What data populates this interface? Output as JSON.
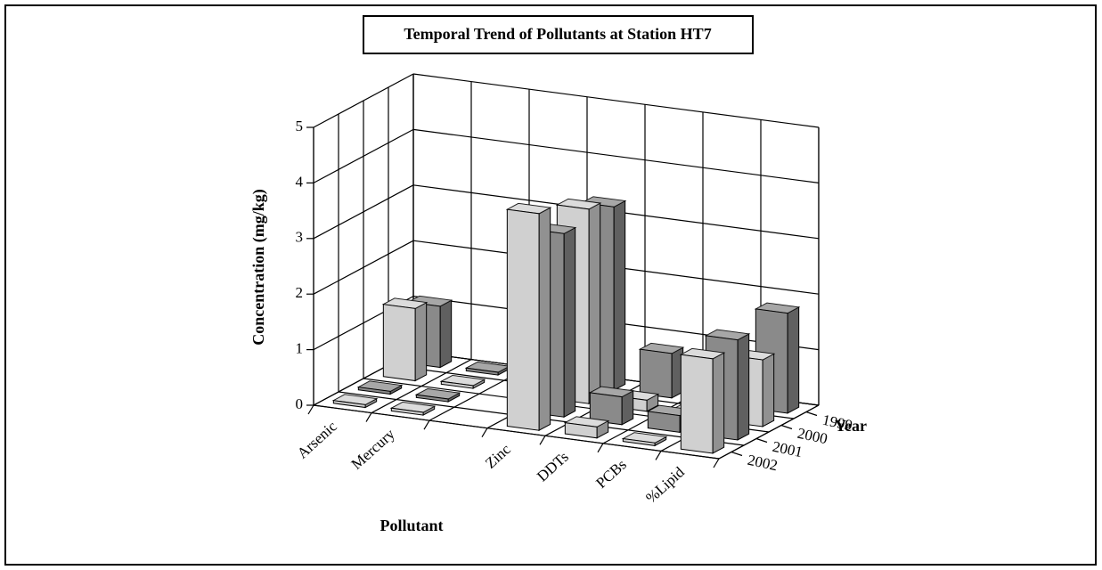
{
  "chart_data": {
    "type": "bar3d",
    "title": "Temporal Trend of Pollutants at Station HT7",
    "y_label": "Concentration (mg/kg)",
    "x_label": "Pollutant",
    "depth_label": "Year",
    "categories": [
      "Arsenic",
      "Mercury",
      null,
      "Zinc",
      "DDTs",
      "PCBs",
      "%Lipid"
    ],
    "series": [
      {
        "name": "1999",
        "color": "#8a8a8a",
        "values": [
          1.1,
          0.05,
          null,
          3.3,
          0.8,
          0.5,
          1.8
        ]
      },
      {
        "name": "2000",
        "color": "#d0d0d0",
        "values": [
          1.3,
          0.05,
          null,
          3.5,
          0.2,
          0.1,
          1.2
        ]
      },
      {
        "name": "2001",
        "color": "#8a8a8a",
        "values": [
          0.05,
          0.05,
          null,
          3.3,
          0.5,
          0.3,
          1.8
        ]
      },
      {
        "name": "2002",
        "color": "#d0d0d0",
        "values": [
          0.05,
          0.05,
          null,
          3.9,
          0.2,
          0.05,
          1.7
        ]
      }
    ],
    "ylim": [
      0,
      5
    ],
    "yticks": [
      0,
      1,
      2,
      3,
      4,
      5
    ],
    "grid": true
  }
}
